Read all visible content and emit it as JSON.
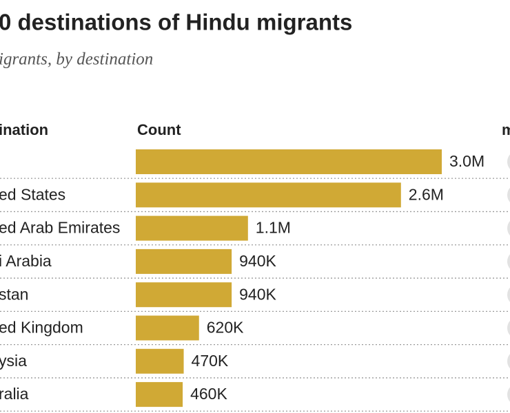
{
  "chart_data": {
    "type": "bar",
    "orientation": "horizontal",
    "title": "0 destinations of Hindu migrants",
    "subtitle": "igrants, by destination",
    "column_headers": [
      "ination",
      "Count",
      "m"
    ],
    "categories": [
      null,
      "ed States",
      "ed Arab Emirates",
      "i Arabia",
      "stan",
      "ed Kingdom",
      "ysia",
      "ralia"
    ],
    "values": [
      3000000,
      2600000,
      1100000,
      940000,
      940000,
      620000,
      470000,
      460000
    ],
    "value_labels": [
      "3.0M",
      "2.6M",
      "1.1M",
      "940K",
      "940K",
      "620K",
      "470K",
      "460K"
    ],
    "color": "#d0a935"
  }
}
